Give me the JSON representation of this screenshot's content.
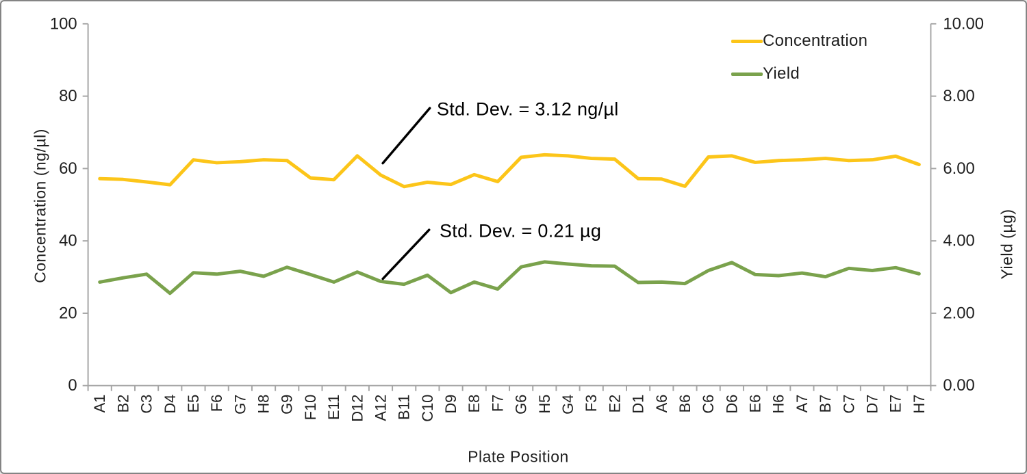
{
  "chart_data": {
    "type": "line",
    "title": "",
    "xlabel": "Plate Position",
    "categories": [
      "A1",
      "B2",
      "C3",
      "D4",
      "E5",
      "F6",
      "G7",
      "H8",
      "G9",
      "F10",
      "E11",
      "D12",
      "A12",
      "B11",
      "C10",
      "D9",
      "E8",
      "F7",
      "G6",
      "H5",
      "G4",
      "F3",
      "E2",
      "D1",
      "A6",
      "B6",
      "C6",
      "D6",
      "E6",
      "H6",
      "A7",
      "B7",
      "C7",
      "D7",
      "E7",
      "H7"
    ],
    "series": [
      {
        "name": "Concentration",
        "axis": "left",
        "color": "#FCC519",
        "values": [
          57.2,
          57.0,
          56.3,
          55.5,
          62.4,
          61.6,
          61.9,
          62.4,
          62.2,
          57.4,
          56.9,
          63.5,
          58.2,
          55.0,
          56.2,
          55.6,
          58.3,
          56.4,
          63.1,
          63.8,
          63.5,
          62.8,
          62.6,
          57.2,
          57.1,
          55.1,
          63.2,
          63.5,
          61.7,
          62.2,
          62.4,
          62.8,
          62.2,
          62.4,
          63.4,
          61.1
        ]
      },
      {
        "name": "Yield",
        "axis": "right",
        "color": "#7AA24C",
        "values": [
          2.86,
          2.98,
          3.08,
          2.55,
          3.12,
          3.08,
          3.16,
          3.02,
          3.27,
          3.07,
          2.86,
          3.14,
          2.88,
          2.8,
          3.05,
          2.57,
          2.86,
          2.67,
          3.28,
          3.42,
          3.36,
          3.31,
          3.3,
          2.85,
          2.86,
          2.82,
          3.18,
          3.4,
          3.07,
          3.04,
          3.11,
          3.01,
          3.24,
          3.18,
          3.26,
          3.09
        ]
      }
    ],
    "y_left": {
      "label": "Concentration (ng/µl)",
      "min": 0,
      "max": 100,
      "ticks": [
        "0",
        "20",
        "40",
        "60",
        "80",
        "100"
      ]
    },
    "y_right": {
      "label": "Yield (µg)",
      "min": 0,
      "max": 10,
      "ticks": [
        "0.00",
        "2.00",
        "4.00",
        "6.00",
        "8.00",
        "10.00"
      ]
    },
    "legend_position": "top-right",
    "grid": false,
    "annotations": [
      {
        "text": "Std. Dev. = 3.12 ng/µl",
        "series": "Concentration"
      },
      {
        "text": "Std. Dev. = 0.21 µg",
        "series": "Yield"
      }
    ]
  },
  "colors": {
    "axis": "#A6A6A6",
    "text": "#1F1F1F",
    "annotation_line": "#000000",
    "border": "#848484",
    "background": "#FFFFFF"
  }
}
